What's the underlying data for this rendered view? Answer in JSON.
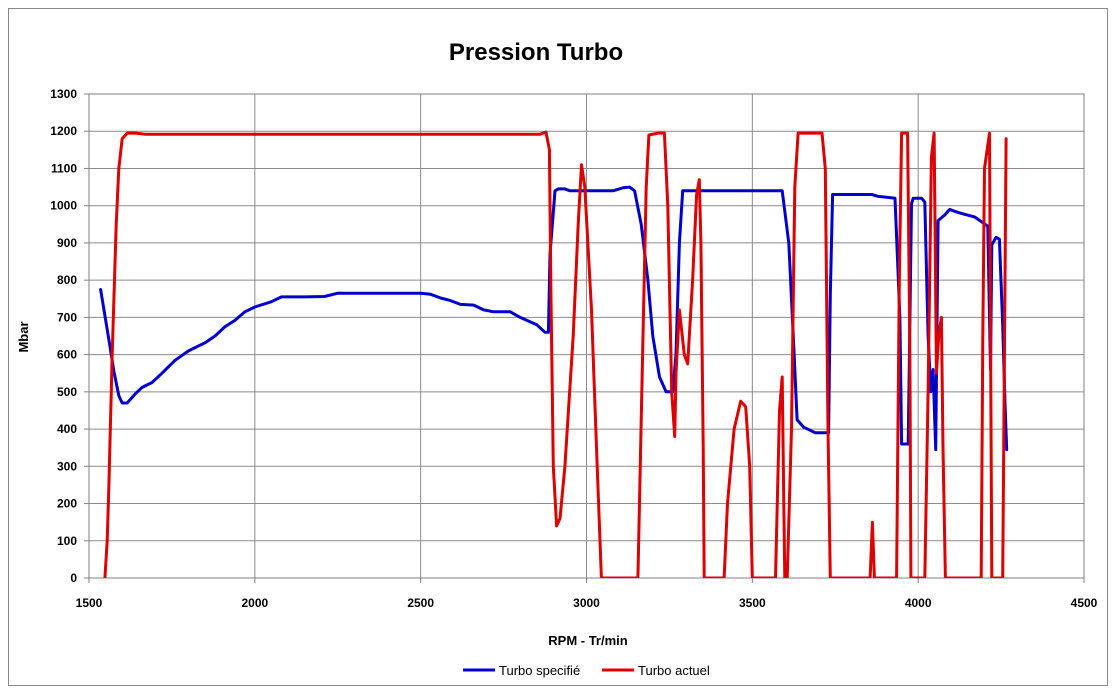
{
  "chart_data": {
    "type": "line",
    "title": "Pression Turbo",
    "xlabel": "RPM - Tr/min",
    "ylabel": "Mbar",
    "xlim": [
      1500,
      4500
    ],
    "ylim": [
      0,
      1300
    ],
    "x_ticks": [
      1500,
      2000,
      2500,
      3000,
      3500,
      4000,
      4500
    ],
    "y_ticks": [
      0,
      100,
      200,
      300,
      400,
      500,
      600,
      700,
      800,
      900,
      1000,
      1100,
      1200,
      1300
    ],
    "grid": true,
    "legend_position": "bottom",
    "series": [
      {
        "name": "Turbo specifié",
        "color": "#0000CC",
        "points": [
          [
            1535,
            775
          ],
          [
            1560,
            640
          ],
          [
            1575,
            555
          ],
          [
            1590,
            490
          ],
          [
            1600,
            470
          ],
          [
            1615,
            470
          ],
          [
            1640,
            495
          ],
          [
            1660,
            512
          ],
          [
            1690,
            525
          ],
          [
            1720,
            550
          ],
          [
            1760,
            585
          ],
          [
            1800,
            610
          ],
          [
            1850,
            632
          ],
          [
            1880,
            650
          ],
          [
            1910,
            675
          ],
          [
            1940,
            692
          ],
          [
            1970,
            715
          ],
          [
            2000,
            728
          ],
          [
            2050,
            742
          ],
          [
            2080,
            755
          ],
          [
            2150,
            755
          ],
          [
            2210,
            756
          ],
          [
            2250,
            765
          ],
          [
            2500,
            765
          ],
          [
            2530,
            762
          ],
          [
            2560,
            752
          ],
          [
            2590,
            745
          ],
          [
            2620,
            735
          ],
          [
            2660,
            733
          ],
          [
            2690,
            720
          ],
          [
            2720,
            715
          ],
          [
            2770,
            715
          ],
          [
            2800,
            700
          ],
          [
            2850,
            680
          ],
          [
            2875,
            660
          ],
          [
            2885,
            660
          ],
          [
            2890,
            870
          ],
          [
            2905,
            1040
          ],
          [
            2915,
            1045
          ],
          [
            2935,
            1045
          ],
          [
            2950,
            1040
          ],
          [
            3080,
            1040
          ],
          [
            3110,
            1048
          ],
          [
            3130,
            1050
          ],
          [
            3145,
            1040
          ],
          [
            3165,
            950
          ],
          [
            3185,
            800
          ],
          [
            3200,
            650
          ],
          [
            3220,
            540
          ],
          [
            3240,
            500
          ],
          [
            3260,
            500
          ],
          [
            3270,
            600
          ],
          [
            3280,
            900
          ],
          [
            3290,
            1040
          ],
          [
            3300,
            1040
          ],
          [
            3590,
            1040
          ],
          [
            3610,
            900
          ],
          [
            3625,
            620
          ],
          [
            3635,
            425
          ],
          [
            3655,
            405
          ],
          [
            3690,
            390
          ],
          [
            3720,
            390
          ],
          [
            3730,
            390
          ],
          [
            3735,
            760
          ],
          [
            3742,
            1030
          ],
          [
            3860,
            1030
          ],
          [
            3880,
            1025
          ],
          [
            3930,
            1020
          ],
          [
            3945,
            700
          ],
          [
            3950,
            360
          ],
          [
            3970,
            360
          ],
          [
            3980,
            1005
          ],
          [
            3985,
            1020
          ],
          [
            4010,
            1020
          ],
          [
            4020,
            1010
          ],
          [
            4030,
            650
          ],
          [
            4038,
            500
          ],
          [
            4045,
            560
          ],
          [
            4053,
            345
          ],
          [
            4060,
            960
          ],
          [
            4080,
            975
          ],
          [
            4095,
            990
          ],
          [
            4110,
            985
          ],
          [
            4140,
            977
          ],
          [
            4170,
            970
          ],
          [
            4210,
            945
          ],
          [
            4218,
            560
          ],
          [
            4222,
            895
          ],
          [
            4235,
            915
          ],
          [
            4245,
            910
          ],
          [
            4255,
            680
          ],
          [
            4262,
            460
          ],
          [
            4267,
            345
          ]
        ]
      },
      {
        "name": "Turbo actuel",
        "color": "#DD0000",
        "points": [
          [
            1548,
            0
          ],
          [
            1555,
            100
          ],
          [
            1560,
            250
          ],
          [
            1570,
            600
          ],
          [
            1582,
            950
          ],
          [
            1590,
            1100
          ],
          [
            1600,
            1180
          ],
          [
            1615,
            1195
          ],
          [
            1640,
            1195
          ],
          [
            1670,
            1192
          ],
          [
            2860,
            1192
          ],
          [
            2878,
            1198
          ],
          [
            2888,
            1150
          ],
          [
            2893,
            750
          ],
          [
            2900,
            300
          ],
          [
            2910,
            140
          ],
          [
            2920,
            160
          ],
          [
            2935,
            300
          ],
          [
            2960,
            650
          ],
          [
            2975,
            950
          ],
          [
            2985,
            1110
          ],
          [
            2995,
            1050
          ],
          [
            3015,
            720
          ],
          [
            3030,
            350
          ],
          [
            3045,
            0
          ],
          [
            3155,
            0
          ],
          [
            3168,
            550
          ],
          [
            3180,
            1050
          ],
          [
            3188,
            1190
          ],
          [
            3215,
            1195
          ],
          [
            3235,
            1195
          ],
          [
            3245,
            1000
          ],
          [
            3257,
            500
          ],
          [
            3266,
            380
          ],
          [
            3270,
            550
          ],
          [
            3280,
            720
          ],
          [
            3295,
            600
          ],
          [
            3305,
            575
          ],
          [
            3320,
            800
          ],
          [
            3332,
            1030
          ],
          [
            3340,
            1070
          ],
          [
            3345,
            900
          ],
          [
            3352,
            350
          ],
          [
            3355,
            0
          ],
          [
            3415,
            0
          ],
          [
            3425,
            200
          ],
          [
            3445,
            400
          ],
          [
            3465,
            475
          ],
          [
            3480,
            460
          ],
          [
            3492,
            300
          ],
          [
            3500,
            0
          ],
          [
            3570,
            0
          ],
          [
            3582,
            450
          ],
          [
            3590,
            540
          ],
          [
            3595,
            200
          ],
          [
            3598,
            0
          ],
          [
            3605,
            0
          ],
          [
            3618,
            400
          ],
          [
            3628,
            1050
          ],
          [
            3638,
            1195
          ],
          [
            3710,
            1195
          ],
          [
            3720,
            1100
          ],
          [
            3728,
            400
          ],
          [
            3735,
            0
          ],
          [
            3855,
            0
          ],
          [
            3862,
            150
          ],
          [
            3868,
            0
          ],
          [
            3935,
            0
          ],
          [
            3943,
            800
          ],
          [
            3950,
            1195
          ],
          [
            3968,
            1195
          ],
          [
            3975,
            600
          ],
          [
            3978,
            0
          ],
          [
            4020,
            0
          ],
          [
            4030,
            500
          ],
          [
            4040,
            1130
          ],
          [
            4048,
            1195
          ],
          [
            4052,
            850
          ],
          [
            4055,
            550
          ],
          [
            4062,
            650
          ],
          [
            4070,
            700
          ],
          [
            4075,
            350
          ],
          [
            4082,
            0
          ],
          [
            4190,
            0
          ],
          [
            4195,
            650
          ],
          [
            4200,
            1100
          ],
          [
            4215,
            1195
          ],
          [
            4222,
            0
          ],
          [
            4255,
            0
          ],
          [
            4265,
            1180
          ]
        ]
      }
    ]
  }
}
